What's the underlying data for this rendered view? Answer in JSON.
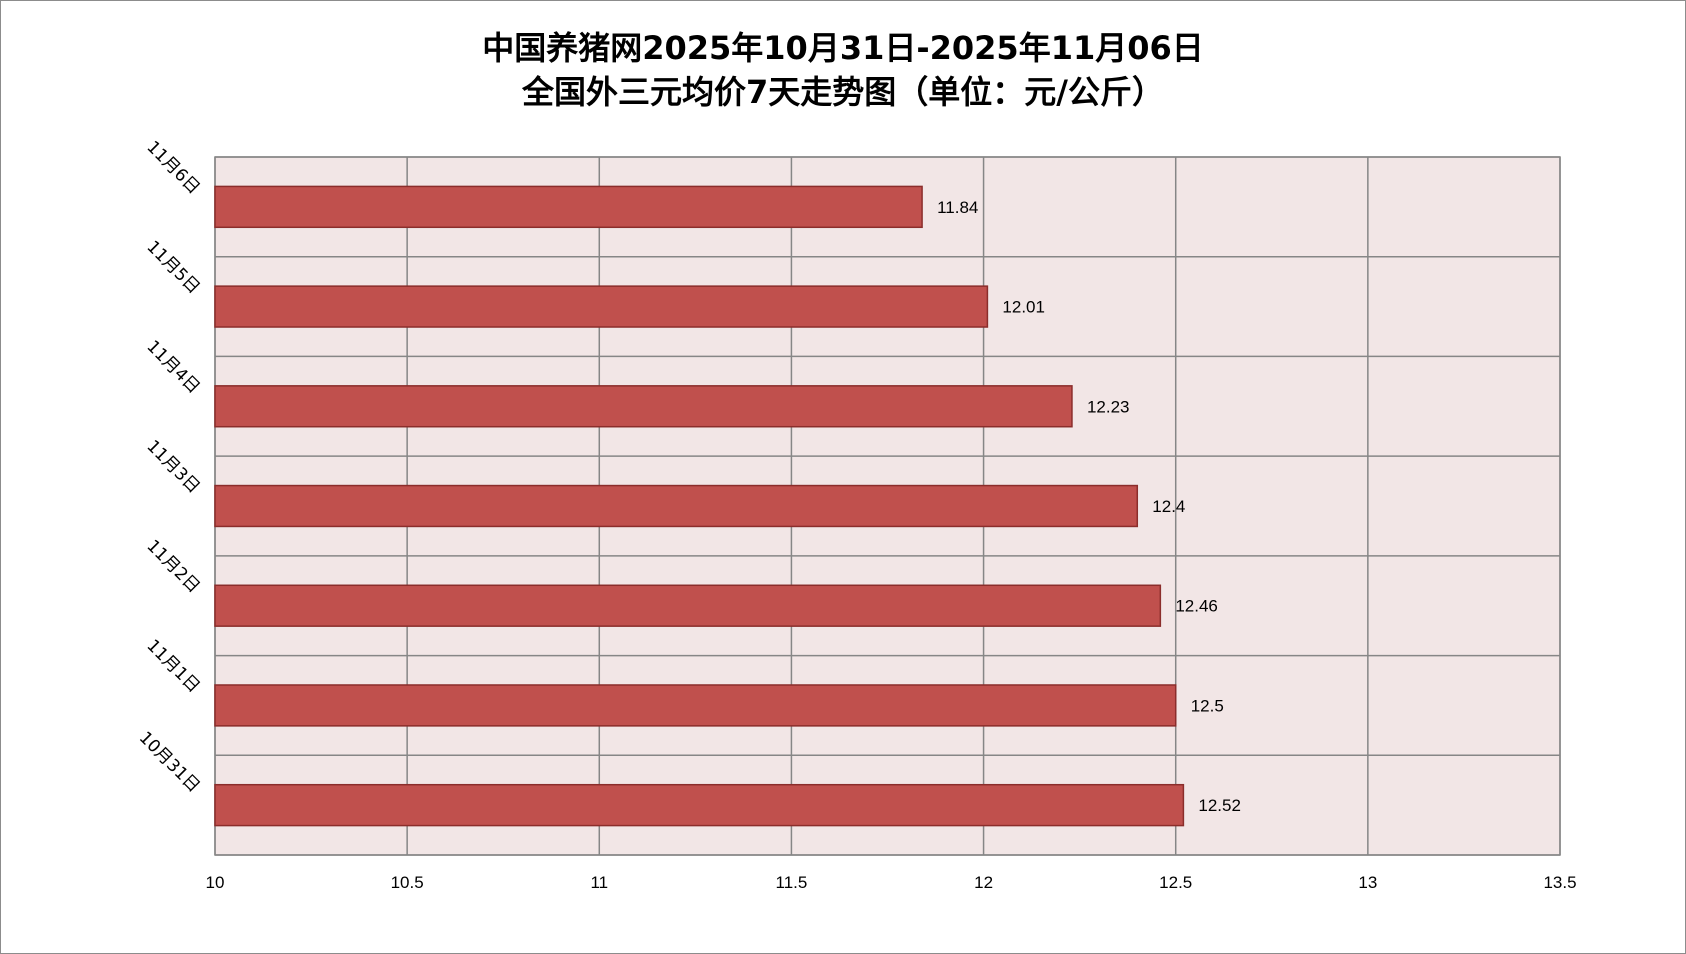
{
  "chart_data": {
    "type": "bar",
    "orientation": "horizontal",
    "title": "中国养猪网2025年10月31日-2025年11月06日",
    "subtitle": "全国外三元均价7天走势图（单位：元/公斤）",
    "categories": [
      "10月31日",
      "11月1日",
      "11月2日",
      "11月3日",
      "11月4日",
      "11月5日",
      "11月6日"
    ],
    "values": [
      12.52,
      12.5,
      12.46,
      12.4,
      12.23,
      12.01,
      11.84
    ],
    "data_labels": [
      "12.52",
      "12.5",
      "12.46",
      "12.4",
      "12.23",
      "12.01",
      "11.84"
    ],
    "xlim": [
      10,
      13.5
    ],
    "xticks": [
      10,
      10.5,
      11,
      11.5,
      12,
      12.5,
      13,
      13.5
    ],
    "xtick_labels": [
      "10",
      "10.5",
      "11",
      "11.5",
      "12",
      "12.5",
      "13",
      "13.5"
    ],
    "xlabel": "",
    "ylabel": "",
    "grid": true,
    "legend": "none",
    "category_label_rotation": 45
  },
  "colors": {
    "bar_fill": "#c0504d",
    "bar_stroke": "#8b2d2b",
    "plot_background": "#f2e6e6",
    "grid_line": "#868686",
    "frame_border": "#8c8c8c"
  }
}
